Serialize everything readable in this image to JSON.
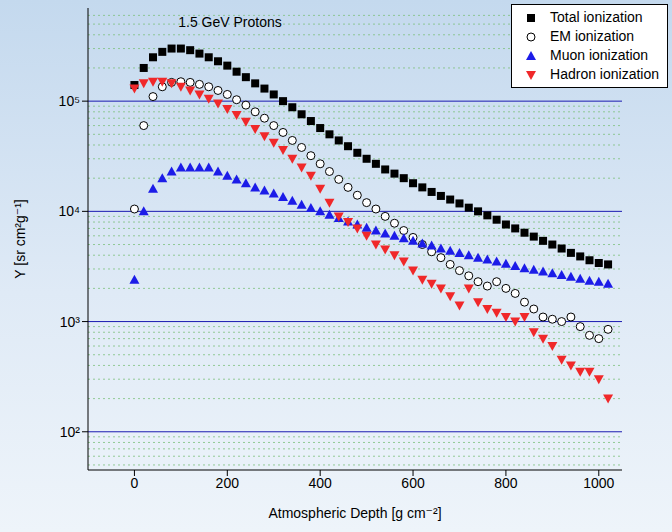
{
  "chart_data": {
    "type": "scatter",
    "title": "1.5 GeV Protons",
    "x_label": "Atmospheric Depth [g cm⁻²]",
    "y_label": "Y [sr cm²g⁻¹]",
    "log": "y",
    "grid": true,
    "legend": "upper right",
    "xlim": [
      -100,
      1050
    ],
    "xticks": [
      0,
      200,
      400,
      600,
      800,
      1000
    ],
    "ylim": [
      45,
      700000
    ],
    "yticks": [
      {
        "value": 100,
        "label": "10²"
      },
      {
        "value": 1000,
        "label": "10³"
      },
      {
        "value": 10000,
        "label": "10⁴"
      },
      {
        "value": 100000,
        "label": "10⁵"
      }
    ],
    "x": [
      0,
      20,
      40,
      60,
      80,
      100,
      120,
      140,
      160,
      180,
      200,
      220,
      240,
      260,
      280,
      300,
      320,
      340,
      360,
      380,
      400,
      420,
      440,
      460,
      480,
      500,
      520,
      540,
      560,
      580,
      600,
      620,
      640,
      660,
      680,
      700,
      720,
      740,
      760,
      780,
      800,
      820,
      840,
      860,
      880,
      900,
      920,
      940,
      960,
      980,
      1000,
      1020
    ],
    "series": [
      {
        "name": "Total ionization",
        "color": "#000000",
        "marker": "square",
        "values": [
          140000,
          200000,
          250000,
          280000,
          300000,
          300000,
          290000,
          270000,
          250000,
          230000,
          210000,
          185000,
          165000,
          145000,
          130000,
          115000,
          100000,
          88000,
          76000,
          66000,
          57000,
          50000,
          44000,
          39000,
          34000,
          30000,
          27000,
          24000,
          22000,
          20000,
          18000,
          16500,
          15000,
          13800,
          12800,
          11800,
          10800,
          10000,
          9200,
          8400,
          7600,
          7000,
          6400,
          5900,
          5400,
          5000,
          4600,
          4200,
          3900,
          3600,
          3400,
          3300
        ]
      },
      {
        "name": "EM ionization",
        "color": "#000000",
        "marker": "open_circle",
        "values": [
          10500,
          60000,
          110000,
          135000,
          148000,
          150000,
          148000,
          142000,
          135000,
          125000,
          115000,
          103000,
          92000,
          80000,
          70000,
          60000,
          52000,
          44000,
          38000,
          32000,
          27000,
          23000,
          19500,
          16500,
          14000,
          12000,
          10500,
          9000,
          7800,
          6700,
          5800,
          5000,
          4300,
          3800,
          3300,
          2900,
          2600,
          2300,
          2100,
          2300,
          2000,
          1800,
          1500,
          1300,
          1100,
          1050,
          1000,
          1100,
          900,
          750,
          700,
          850
        ]
      },
      {
        "name": "Muon ionization",
        "color": "#1c1ce8",
        "marker": "triangle",
        "values": [
          2400,
          10000,
          16000,
          20000,
          23000,
          25000,
          25000,
          25000,
          25000,
          23000,
          21000,
          19500,
          18000,
          16500,
          15500,
          14500,
          13500,
          12500,
          11500,
          10700,
          10000,
          9300,
          8700,
          8100,
          7600,
          7100,
          6700,
          6300,
          6000,
          5700,
          5400,
          5100,
          4900,
          4600,
          4400,
          4200,
          4000,
          3800,
          3650,
          3500,
          3350,
          3200,
          3050,
          2950,
          2850,
          2750,
          2650,
          2550,
          2450,
          2350,
          2300,
          2200
        ]
      },
      {
        "name": "Hadron ionization",
        "color": "#f0282a",
        "marker": "inverted_triangle",
        "values": [
          130000,
          145000,
          150000,
          150000,
          145000,
          135000,
          125000,
          115000,
          105000,
          95000,
          85000,
          75000,
          65000,
          56000,
          48000,
          42000,
          36000,
          30000,
          25000,
          21000,
          16000,
          12000,
          9000,
          8000,
          7000,
          6000,
          5000,
          4500,
          4000,
          3500,
          2900,
          2400,
          2200,
          2000,
          1700,
          1400,
          2000,
          1500,
          1300,
          1200,
          1100,
          1000,
          1100,
          800,
          700,
          600,
          450,
          400,
          350,
          350,
          300,
          200
        ]
      }
    ]
  }
}
